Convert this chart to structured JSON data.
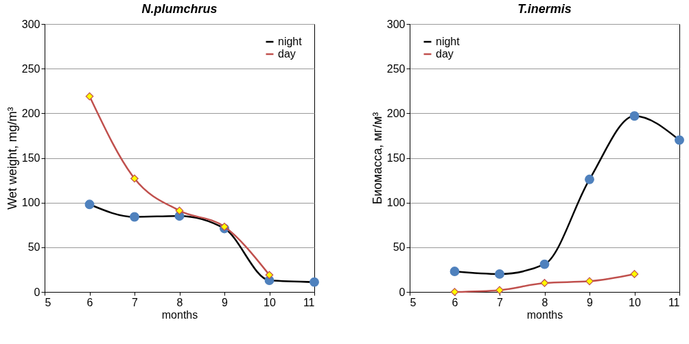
{
  "chart_data": [
    {
      "type": "line",
      "title": "N.plumchrus",
      "xlabel": "months",
      "ylabel": "Wet weight, mg/m³",
      "x": [
        6,
        7,
        8,
        9,
        10,
        11
      ],
      "xlim": [
        5,
        11
      ],
      "xticks": [
        5,
        6,
        7,
        8,
        9,
        10,
        11
      ],
      "ylim": [
        0,
        300
      ],
      "yticks": [
        0,
        50,
        100,
        150,
        200,
        250,
        300
      ],
      "grid": "y",
      "legend": "top right",
      "series": [
        {
          "name": "night",
          "color": "#000000",
          "marker": "circle",
          "values": [
            98,
            84,
            85,
            71,
            13,
            11
          ]
        },
        {
          "name": "day",
          "color": "#c0504d",
          "marker": "diamond",
          "values": [
            219,
            127,
            91,
            73,
            19,
            null
          ]
        }
      ]
    },
    {
      "type": "line",
      "title": "T.inermis",
      "xlabel": "months",
      "ylabel": "Биомасса, мг/м³",
      "x": [
        6,
        7,
        8,
        9,
        10,
        11
      ],
      "xlim": [
        5,
        11
      ],
      "xticks": [
        5,
        6,
        7,
        8,
        9,
        10,
        11
      ],
      "ylim": [
        0,
        300
      ],
      "yticks": [
        0,
        50,
        100,
        150,
        200,
        250,
        300
      ],
      "grid": "y",
      "legend": "top left",
      "series": [
        {
          "name": "night",
          "color": "#000000",
          "marker": "circle",
          "values": [
            23,
            20,
            31,
            126,
            197,
            170
          ]
        },
        {
          "name": "day",
          "color": "#c0504d",
          "marker": "diamond",
          "values": [
            0,
            2,
            10,
            12,
            20,
            null
          ]
        }
      ]
    }
  ]
}
